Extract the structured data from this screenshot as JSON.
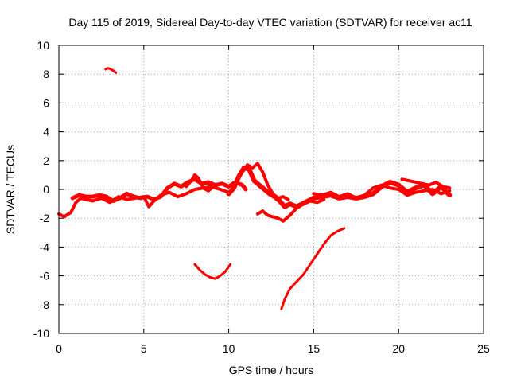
{
  "chart_data": {
    "type": "line",
    "title": "Day 115 of 2019, Sidereal Day-to-day VTEC variation (SDTVAR) for receiver ac11",
    "xlabel": "GPS time / hours",
    "ylabel": "SDTVAR / TECUs",
    "xlim": [
      0,
      25
    ],
    "ylim": [
      -10,
      10
    ],
    "xticks": [
      0,
      5,
      10,
      15,
      20,
      25
    ],
    "yticks": [
      -10,
      -8,
      -6,
      -4,
      -2,
      0,
      2,
      4,
      6,
      8,
      10
    ],
    "grid": true,
    "color": "#ff0000",
    "series": [
      {
        "name": "band-main-low",
        "x": [
          0,
          0.3,
          0.7,
          1.0,
          1.3,
          1.6,
          2.0,
          2.5,
          3.0,
          3.5,
          4.0,
          4.5,
          5.0,
          5.3,
          5.6,
          6.0,
          6.5,
          7.0,
          7.5,
          8.0,
          8.5,
          9.0,
          9.5,
          10.0
        ],
        "y": [
          -1.7,
          -1.9,
          -1.6,
          -0.9,
          -0.6,
          -0.7,
          -0.8,
          -0.6,
          -0.9,
          -0.5,
          -0.7,
          -0.6,
          -0.5,
          -1.2,
          -0.8,
          -0.4,
          -0.2,
          -0.5,
          -0.3,
          0.0,
          0.1,
          0.2,
          0.0,
          -0.2
        ],
        "width": 4
      },
      {
        "name": "band-main-high",
        "x": [
          0.8,
          1.2,
          1.6,
          2.0,
          2.4,
          2.8,
          3.2,
          3.6,
          4.0,
          4.4,
          4.8,
          5.2,
          5.6,
          6.0,
          6.4,
          6.8,
          7.2,
          7.6,
          8.0,
          8.4,
          8.8,
          9.2,
          9.6,
          10.0,
          10.4,
          10.8,
          11.0
        ],
        "y": [
          -0.6,
          -0.4,
          -0.5,
          -0.5,
          -0.4,
          -0.5,
          -0.8,
          -0.6,
          -0.3,
          -0.5,
          -0.6,
          -0.5,
          -0.7,
          -0.5,
          0.1,
          0.4,
          0.2,
          0.5,
          0.7,
          0.4,
          0.5,
          0.3,
          0.4,
          0.2,
          0.5,
          0.3,
          0.0
        ],
        "width": 5
      },
      {
        "name": "hump-8h",
        "x": [
          7.5,
          7.8,
          8.0,
          8.2,
          8.5,
          8.8,
          9.0
        ],
        "y": [
          0.2,
          0.6,
          1.0,
          0.8,
          0.1,
          -0.1,
          0.1
        ],
        "width": 4
      },
      {
        "name": "band-afternoon",
        "x": [
          10.0,
          10.3,
          10.6,
          10.9,
          11.2,
          11.5,
          11.8,
          12.1,
          12.4,
          12.7,
          13.0,
          13.3,
          13.6,
          14.0,
          14.5,
          15.0,
          15.5,
          16.0,
          16.5,
          17.0,
          17.5,
          18.0,
          18.5,
          19.0,
          19.5,
          20.0,
          20.5,
          21.0,
          21.5,
          22.0,
          22.5,
          23.0
        ],
        "y": [
          -0.3,
          0.1,
          0.9,
          1.5,
          1.4,
          0.6,
          0.3,
          0.0,
          -0.3,
          -0.5,
          -0.8,
          -1.2,
          -1.0,
          -1.2,
          -0.9,
          -0.6,
          -0.5,
          -0.4,
          -0.6,
          -0.5,
          -0.6,
          -0.5,
          -0.3,
          0.2,
          0.5,
          0.3,
          -0.2,
          0.1,
          0.3,
          -0.3,
          0.2,
          -0.4
        ],
        "width": 6
      },
      {
        "name": "bump-11h",
        "x": [
          10.8,
          11.1,
          11.4,
          11.7,
          12.0,
          12.3,
          12.6,
          12.9,
          13.2,
          13.5
        ],
        "y": [
          1.2,
          1.7,
          1.5,
          1.8,
          1.2,
          0.3,
          -0.3,
          -0.6,
          -0.5,
          -0.7
        ],
        "width": 4
      },
      {
        "name": "dip-12h",
        "x": [
          11.7,
          12.0,
          12.3,
          12.6,
          12.9,
          13.2,
          13.6,
          14.0,
          14.4,
          14.8,
          15.2,
          15.6
        ],
        "y": [
          -1.7,
          -1.5,
          -1.8,
          -1.9,
          -2.0,
          -2.2,
          -1.8,
          -1.3,
          -1.0,
          -0.8,
          -0.9,
          -0.7
        ],
        "width": 4
      },
      {
        "name": "band-evening",
        "x": [
          15.0,
          15.5,
          16.0,
          16.5,
          17.0,
          17.5,
          18.0,
          18.5,
          19.0,
          19.5,
          20.0,
          20.5,
          21.0,
          21.5,
          22.0,
          22.5,
          23.0
        ],
        "y": [
          -0.3,
          -0.4,
          -0.2,
          -0.5,
          -0.3,
          -0.6,
          -0.4,
          0.1,
          0.3,
          0.1,
          0.0,
          -0.4,
          -0.2,
          -0.1,
          0.0,
          -0.3,
          -0.1
        ],
        "width": 4
      },
      {
        "name": "band-late",
        "x": [
          20.2,
          20.6,
          21.0,
          21.4,
          21.8,
          22.2,
          22.6,
          23.0
        ],
        "y": [
          0.7,
          0.6,
          0.5,
          0.4,
          0.3,
          0.5,
          0.2,
          0.1
        ],
        "width": 4
      },
      {
        "name": "arc-near-8",
        "x": [
          2.75,
          2.9,
          3.05,
          3.2,
          3.35
        ],
        "y": [
          8.35,
          8.42,
          8.35,
          8.25,
          8.1
        ],
        "width": 3
      },
      {
        "name": "arc-near-minus6",
        "x": [
          8.0,
          8.3,
          8.6,
          8.9,
          9.2,
          9.5,
          9.8,
          10.1
        ],
        "y": [
          -5.2,
          -5.6,
          -5.9,
          -6.1,
          -6.2,
          -6.0,
          -5.7,
          -5.2
        ],
        "width": 3
      },
      {
        "name": "rise-13h",
        "x": [
          13.1,
          13.3,
          13.6,
          14.0,
          14.4,
          14.8,
          15.2,
          15.6,
          16.0,
          16.4,
          16.8
        ],
        "y": [
          -8.3,
          -7.6,
          -6.9,
          -6.4,
          -5.9,
          -5.2,
          -4.5,
          -3.8,
          -3.2,
          -2.9,
          -2.7
        ],
        "width": 3
      }
    ]
  }
}
